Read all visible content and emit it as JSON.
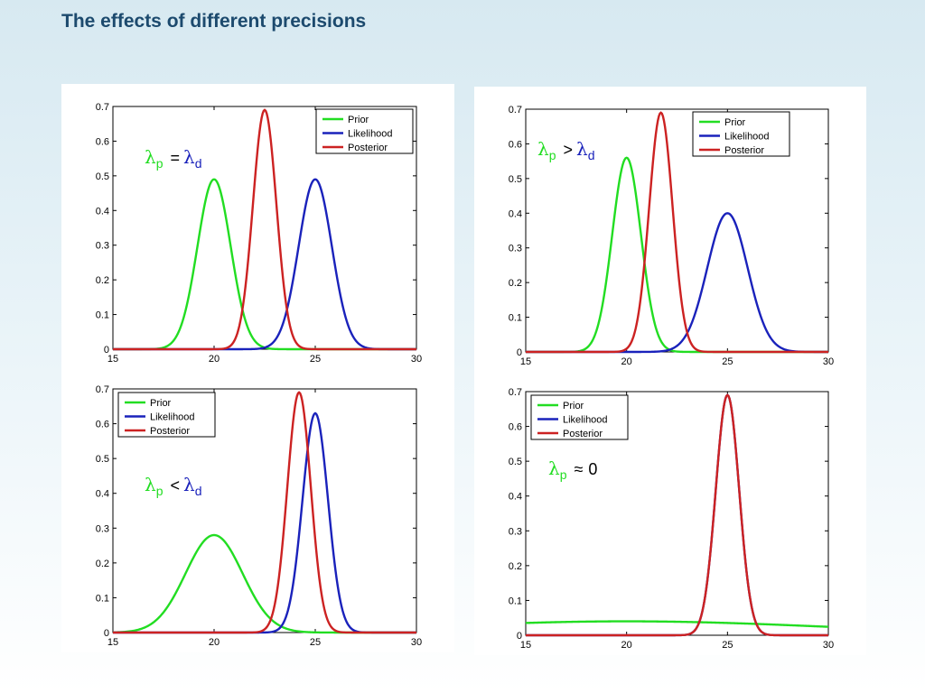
{
  "slide": {
    "title": "The effects of different precisions"
  },
  "legend_labels": [
    "Prior",
    "Likelihood",
    "Posterior"
  ],
  "colors": {
    "prior": "#22dd22",
    "likelihood": "#1a22bb",
    "posterior": "#cc2222"
  },
  "chart_data": [
    {
      "type": "line",
      "annotation": {
        "symbol": "λ",
        "left_sub": "p",
        "operator": "=",
        "right_sub": "d",
        "right": ""
      },
      "xlim": [
        15,
        30
      ],
      "ylim": [
        0,
        0.7
      ],
      "xticks": [
        "15",
        "20",
        "25",
        "30"
      ],
      "yticks": [
        "0",
        "0.1",
        "0.2",
        "0.3",
        "0.4",
        "0.5",
        "0.6",
        "0.7"
      ],
      "legend_position": "top-right",
      "series": [
        {
          "name": "Prior",
          "color_key": "prior",
          "mean": 20,
          "sd": 0.82,
          "peak": 0.49
        },
        {
          "name": "Likelihood",
          "color_key": "likelihood",
          "mean": 25,
          "sd": 0.82,
          "peak": 0.49
        },
        {
          "name": "Posterior",
          "color_key": "posterior",
          "mean": 22.5,
          "sd": 0.58,
          "peak": 0.69
        }
      ]
    },
    {
      "type": "line",
      "annotation": {
        "symbol": "λ",
        "left_sub": "p",
        "operator": ">",
        "right_sub": "d",
        "right": ""
      },
      "xlim": [
        15,
        30
      ],
      "ylim": [
        0,
        0.7
      ],
      "xticks": [
        "15",
        "20",
        "25",
        "30"
      ],
      "yticks": [
        "0",
        "0.1",
        "0.2",
        "0.3",
        "0.4",
        "0.5",
        "0.6",
        "0.7"
      ],
      "legend_position": "top-right",
      "series": [
        {
          "name": "Prior",
          "color_key": "prior",
          "mean": 20,
          "sd": 0.71,
          "peak": 0.56
        },
        {
          "name": "Likelihood",
          "color_key": "likelihood",
          "mean": 25,
          "sd": 1.0,
          "peak": 0.4
        },
        {
          "name": "Posterior",
          "color_key": "posterior",
          "mean": 21.7,
          "sd": 0.58,
          "peak": 0.69
        }
      ]
    },
    {
      "type": "line",
      "annotation": {
        "symbol": "λ",
        "left_sub": "p",
        "operator": "<",
        "right_sub": "d",
        "right": ""
      },
      "xlim": [
        15,
        30
      ],
      "ylim": [
        0,
        0.7
      ],
      "xticks": [
        "15",
        "20",
        "25",
        "30"
      ],
      "yticks": [
        "0",
        "0.1",
        "0.2",
        "0.3",
        "0.4",
        "0.5",
        "0.6",
        "0.7"
      ],
      "legend_position": "top-left",
      "series": [
        {
          "name": "Prior",
          "color_key": "prior",
          "mean": 20,
          "sd": 1.41,
          "peak": 0.28
        },
        {
          "name": "Likelihood",
          "color_key": "likelihood",
          "mean": 25,
          "sd": 0.63,
          "peak": 0.63
        },
        {
          "name": "Posterior",
          "color_key": "posterior",
          "mean": 24.2,
          "sd": 0.58,
          "peak": 0.69
        }
      ]
    },
    {
      "type": "line",
      "annotation": {
        "symbol": "λ",
        "left_sub": "p",
        "operator": "≈",
        "right_sub": "",
        "right": "0"
      },
      "xlim": [
        15,
        30
      ],
      "ylim": [
        0,
        0.7
      ],
      "xticks": [
        "15",
        "20",
        "25",
        "30"
      ],
      "yticks": [
        "0",
        "0.1",
        "0.2",
        "0.3",
        "0.4",
        "0.5",
        "0.6",
        "0.7"
      ],
      "legend_position": "top-left",
      "series": [
        {
          "name": "Prior",
          "color_key": "prior",
          "mean": 20,
          "sd": 10,
          "peak": 0.04
        },
        {
          "name": "Likelihood",
          "color_key": "likelihood",
          "mean": 25,
          "sd": 0.58,
          "peak": 0.69
        },
        {
          "name": "Posterior",
          "color_key": "posterior",
          "mean": 25,
          "sd": 0.58,
          "peak": 0.69
        }
      ]
    }
  ]
}
